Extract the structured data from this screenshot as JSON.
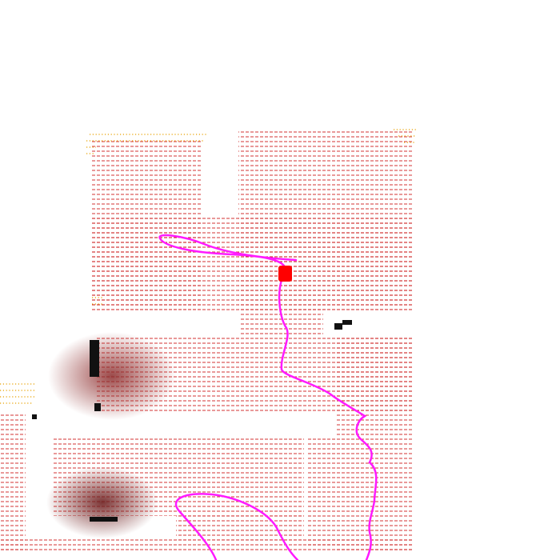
{
  "map": {
    "description_free": true,
    "colors": {
      "background": "#ffffff",
      "field_arrow": "#c80000",
      "frontier_dots": "#e8a100",
      "obstacle": "#111111",
      "potential_shade": "#8b2a2a",
      "trajectory": "#ff1aff",
      "robot": "#ff0000"
    },
    "legend": null
  }
}
